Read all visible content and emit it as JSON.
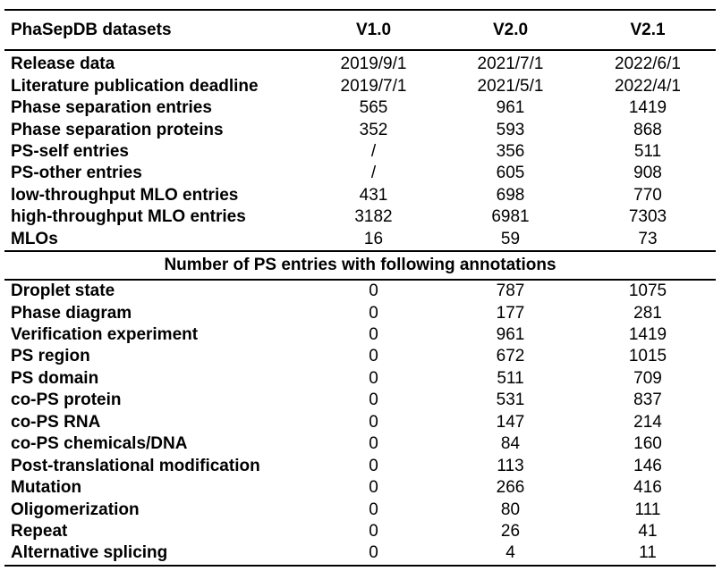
{
  "header": [
    "PhaSepDB datasets",
    "V1.0",
    "V2.0",
    "V2.1"
  ],
  "rows1": [
    [
      "Release data",
      "2019/9/1",
      "2021/7/1",
      "2022/6/1"
    ],
    [
      "Literature publication deadline",
      "2019/7/1",
      "2021/5/1",
      "2022/4/1"
    ],
    [
      "Phase separation entries",
      "565",
      "961",
      "1419"
    ],
    [
      "Phase separation proteins",
      "352",
      "593",
      "868"
    ],
    [
      "PS-self entries",
      "/",
      "356",
      "511"
    ],
    [
      "PS-other entries",
      "/",
      "605",
      "908"
    ],
    [
      "low-throughput MLO entries",
      "431",
      "698",
      "770"
    ],
    [
      "high-throughput MLO entries",
      "3182",
      "6981",
      "7303"
    ],
    [
      "MLOs",
      "16",
      "59",
      "73"
    ]
  ],
  "section_title": "Number of PS entries with following annotations",
  "rows2": [
    [
      "Droplet state",
      "0",
      "787",
      "1075"
    ],
    [
      "Phase diagram",
      "0",
      "177",
      "281"
    ],
    [
      "Verification experiment",
      "0",
      "961",
      "1419"
    ],
    [
      "PS region",
      "0",
      "672",
      "1015"
    ],
    [
      "PS domain",
      "0",
      "511",
      "709"
    ],
    [
      "co-PS protein",
      "0",
      "531",
      "837"
    ],
    [
      "co-PS RNA",
      "0",
      "147",
      "214"
    ],
    [
      "co-PS chemicals/DNA",
      "0",
      "84",
      "160"
    ],
    [
      "Post-translational modification",
      "0",
      "113",
      "146"
    ],
    [
      "Mutation",
      "0",
      "266",
      "416"
    ],
    [
      "Oligomerization",
      "0",
      "80",
      "111"
    ],
    [
      "Repeat",
      "0",
      "26",
      "41"
    ],
    [
      "Alternative splicing",
      "0",
      "4",
      "11"
    ]
  ]
}
